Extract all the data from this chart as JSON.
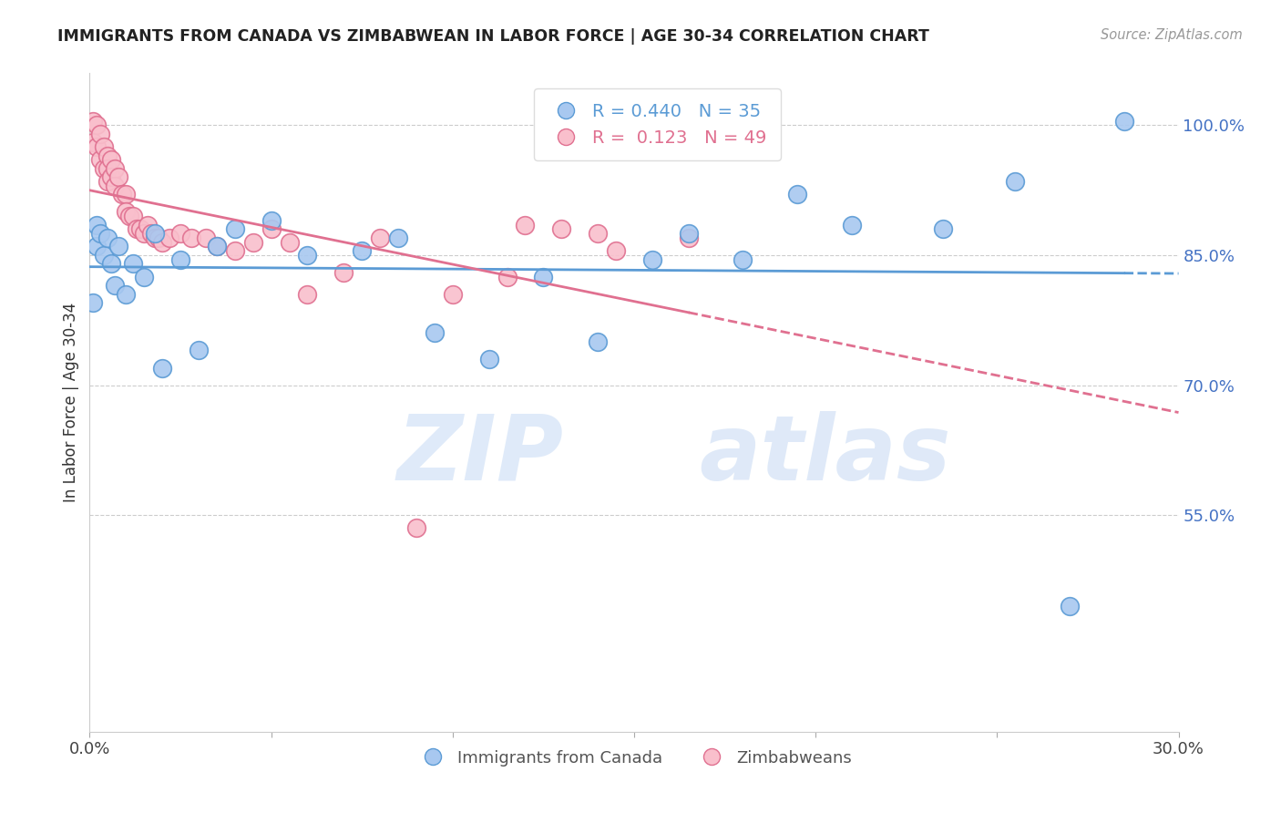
{
  "title": "IMMIGRANTS FROM CANADA VS ZIMBABWEAN IN LABOR FORCE | AGE 30-34 CORRELATION CHART",
  "source_text": "Source: ZipAtlas.com",
  "ylabel": "In Labor Force | Age 30-34",
  "x_min": 0.0,
  "x_max": 0.3,
  "y_min": 0.3,
  "y_max": 1.06,
  "right_yticks": [
    0.55,
    0.7,
    0.85,
    1.0
  ],
  "right_yticklabels": [
    "55.0%",
    "70.0%",
    "85.0%",
    "100.0%"
  ],
  "xticks": [
    0.0,
    0.05,
    0.1,
    0.15,
    0.2,
    0.25,
    0.3
  ],
  "xticklabels": [
    "0.0%",
    "",
    "",
    "",
    "",
    "",
    "30.0%"
  ],
  "canada_color": "#a8c8f0",
  "canada_edge_color": "#5b9bd5",
  "zimbabwe_color": "#f9bfcc",
  "zimbabwe_edge_color": "#e07090",
  "canada_R": 0.44,
  "canada_N": 35,
  "zimbabwe_R": 0.123,
  "zimbabwe_N": 49,
  "legend_label_canada": "Immigrants from Canada",
  "legend_label_zimbabwe": "Zimbabweans",
  "watermark_zip": "ZIP",
  "watermark_atlas": "atlas",
  "canada_scatter_x": [
    0.001,
    0.002,
    0.002,
    0.003,
    0.004,
    0.005,
    0.006,
    0.007,
    0.008,
    0.01,
    0.012,
    0.015,
    0.018,
    0.02,
    0.025,
    0.03,
    0.035,
    0.04,
    0.05,
    0.06,
    0.075,
    0.085,
    0.095,
    0.11,
    0.125,
    0.14,
    0.155,
    0.165,
    0.18,
    0.195,
    0.21,
    0.235,
    0.255,
    0.27,
    0.285
  ],
  "canada_scatter_y": [
    0.795,
    0.86,
    0.885,
    0.875,
    0.85,
    0.87,
    0.84,
    0.815,
    0.86,
    0.805,
    0.84,
    0.825,
    0.875,
    0.72,
    0.845,
    0.74,
    0.86,
    0.88,
    0.89,
    0.85,
    0.855,
    0.87,
    0.76,
    0.73,
    0.825,
    0.75,
    0.845,
    0.875,
    0.845,
    0.92,
    0.885,
    0.88,
    0.935,
    0.445,
    1.005
  ],
  "zimbabwe_scatter_x": [
    0.001,
    0.001,
    0.002,
    0.002,
    0.003,
    0.003,
    0.004,
    0.004,
    0.005,
    0.005,
    0.005,
    0.006,
    0.006,
    0.007,
    0.007,
    0.008,
    0.009,
    0.01,
    0.01,
    0.011,
    0.012,
    0.013,
    0.014,
    0.015,
    0.016,
    0.017,
    0.018,
    0.019,
    0.02,
    0.022,
    0.025,
    0.028,
    0.032,
    0.035,
    0.04,
    0.045,
    0.05,
    0.055,
    0.06,
    0.07,
    0.08,
    0.09,
    0.1,
    0.115,
    0.13,
    0.145,
    0.165,
    0.14,
    0.12
  ],
  "zimbabwe_scatter_y": [
    1.005,
    0.98,
    1.0,
    0.975,
    0.99,
    0.96,
    0.975,
    0.95,
    0.965,
    0.95,
    0.935,
    0.96,
    0.94,
    0.95,
    0.93,
    0.94,
    0.92,
    0.92,
    0.9,
    0.895,
    0.895,
    0.88,
    0.88,
    0.875,
    0.885,
    0.875,
    0.87,
    0.87,
    0.865,
    0.87,
    0.875,
    0.87,
    0.87,
    0.86,
    0.855,
    0.865,
    0.88,
    0.865,
    0.805,
    0.83,
    0.87,
    0.535,
    0.805,
    0.825,
    0.88,
    0.855,
    0.87,
    0.875,
    0.885
  ],
  "canada_trendline_x": [
    0.0,
    0.285,
    0.3
  ],
  "canada_trendline_solid_end": 0.285,
  "zimbabwe_trendline_x": [
    0.0,
    0.165,
    0.3
  ],
  "zimbabwe_trendline_solid_end": 0.165
}
